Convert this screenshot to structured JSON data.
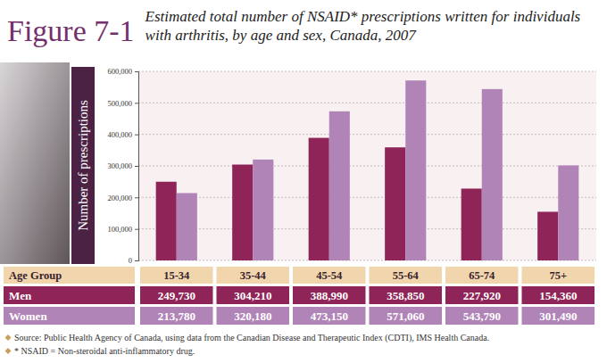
{
  "chart_data": {
    "type": "bar",
    "figure_label": "Figure 7-1",
    "title": "Estimated total number of NSAID* prescriptions written for individuals with arthritis, by age and sex, Canada, 2007",
    "x_label": "Age Group",
    "y_label": "Number of prescriptions",
    "categories": [
      "15-34",
      "35-44",
      "45-54",
      "55-64",
      "65-74",
      "75+"
    ],
    "series": [
      {
        "name": "Men",
        "color": "#8e2457",
        "values": [
          249730,
          304210,
          388990,
          358850,
          227920,
          154360
        ],
        "value_labels": [
          "249,730",
          "304,210",
          "388,990",
          "358,850",
          "227,920",
          "154,360"
        ]
      },
      {
        "name": "Women",
        "color": "#b184b8",
        "values": [
          213780,
          320180,
          473150,
          571060,
          543790,
          301490
        ],
        "value_labels": [
          "213,780",
          "320,180",
          "473,150",
          "571,060",
          "543,790",
          "301,490"
        ]
      }
    ],
    "ylim": [
      0,
      600000
    ],
    "yticks": [
      0,
      {
        "value": 100000,
        "label": "100,000"
      },
      {
        "value": 200000,
        "label": "200,000"
      },
      {
        "value": 300000,
        "label": "300,000"
      },
      {
        "value": 400000,
        "label": "400,000"
      },
      {
        "value": 500000,
        "label": "500,000"
      },
      {
        "value": 600000,
        "label": "600,000"
      }
    ],
    "grid": true,
    "notes": [
      "Source: Public Health Agency of Canada, using data from the Canadian Disease and Therapeutic Index (CDTI), IMS Health Canada.",
      "* NSAID = Non-steroidal anti-inflammatory drug."
    ]
  }
}
